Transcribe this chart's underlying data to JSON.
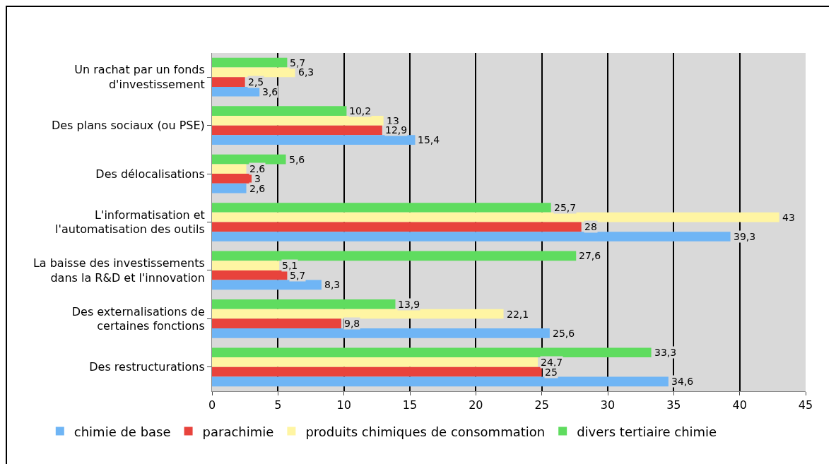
{
  "chart_data": {
    "type": "bar",
    "orientation": "horizontal",
    "categories": [
      "Un rachat par un fonds\nd'investissement",
      "Des plans sociaux (ou PSE)",
      "Des délocalisations",
      "L'informatisation et\nl'automatisation des outils",
      "La baisse des investissements\ndans la R&D et l'innovation",
      "Des externalisations de\ncertaines fonctions",
      "Des restructurations"
    ],
    "series": [
      {
        "name": "chimie de base",
        "color": "#6fb5f5",
        "values": [
          3.6,
          15.4,
          2.6,
          39.3,
          8.3,
          25.6,
          34.6
        ],
        "value_labels": [
          "3,6",
          "15,4",
          "2,6",
          "39,3",
          "8,3",
          "25,6",
          "34,6"
        ]
      },
      {
        "name": "parachimie",
        "color": "#e8433c",
        "values": [
          2.5,
          12.9,
          3,
          28,
          5.7,
          9.8,
          25
        ],
        "value_labels": [
          "2,5",
          "12,9",
          "3",
          "28",
          "5,7",
          "9,8",
          "25"
        ]
      },
      {
        "name": "produits chimiques de consommation",
        "color": "#fff5a3",
        "values": [
          6.3,
          13,
          2.6,
          43,
          5.1,
          22.1,
          24.7
        ],
        "value_labels": [
          "6,3",
          "13",
          "2,6",
          "43",
          "5,1",
          "22,1",
          "24,7"
        ]
      },
      {
        "name": "divers tertiaire chimie",
        "color": "#5fdc5f",
        "values": [
          5.7,
          10.2,
          5.6,
          25.7,
          27.6,
          13.9,
          33.3
        ],
        "value_labels": [
          "5,7",
          "10,2",
          "5,6",
          "25,7",
          "27,6",
          "13,9",
          "33,3"
        ]
      }
    ],
    "xlim": [
      0,
      45
    ],
    "xticks": [
      0,
      5,
      10,
      15,
      20,
      25,
      30,
      35,
      40,
      45
    ],
    "grid": "x",
    "legend": "bottom"
  }
}
